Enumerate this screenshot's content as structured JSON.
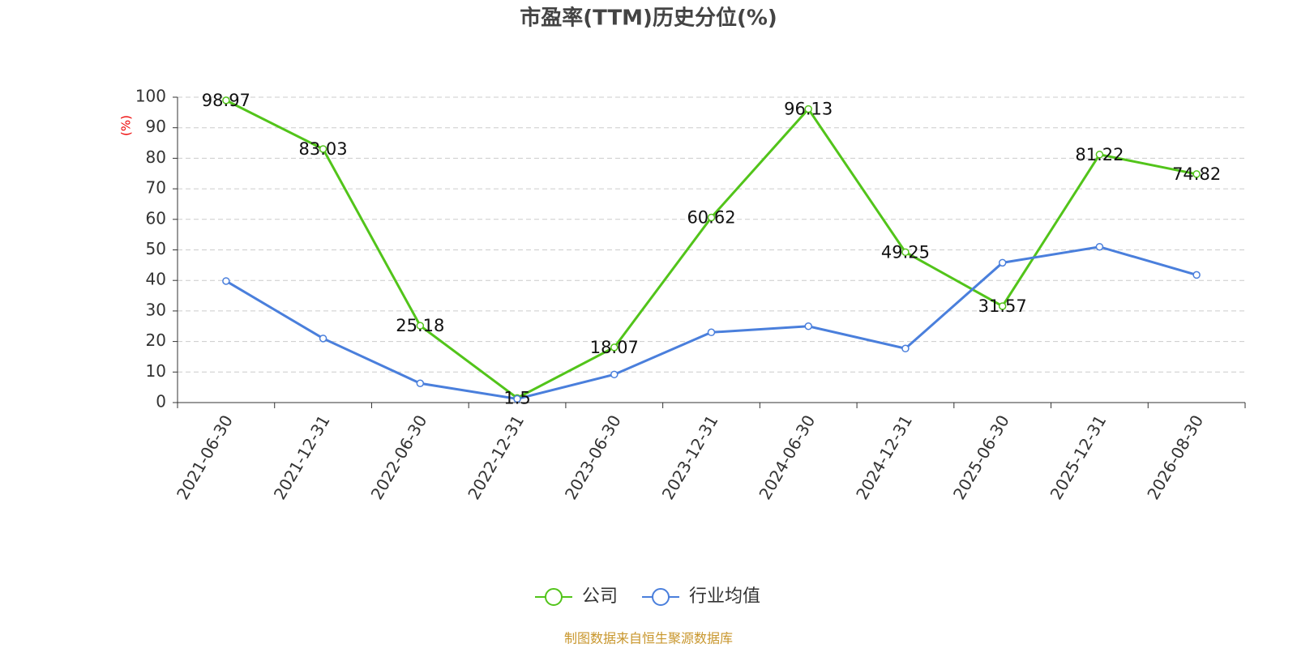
{
  "chart_data": {
    "type": "line",
    "title": "市盈率(TTM)历史分位(%)",
    "y_label": "(%)",
    "categories": [
      "2021-06-30",
      "2021-12-31",
      "2022-06-30",
      "2022-12-31",
      "2023-06-30",
      "2023-12-31",
      "2024-06-30",
      "2024-12-31",
      "2025-06-30",
      "2025-12-31",
      "2026-08-30"
    ],
    "series": [
      {
        "name": "公司",
        "color": "#52c41a",
        "values": [
          98.97,
          83.03,
          25.18,
          1.5,
          18.07,
          60.62,
          96.13,
          49.25,
          31.57,
          81.22,
          74.82
        ],
        "show_labels": true
      },
      {
        "name": "行业均值",
        "color": "#4a7fdc",
        "values": [
          39.8,
          21.0,
          6.3,
          1.2,
          9.2,
          23.0,
          25.0,
          17.7,
          45.8,
          51.0,
          41.8
        ],
        "show_labels": false
      }
    ],
    "ylim": [
      0,
      100
    ],
    "yticks": [
      0,
      10,
      20,
      30,
      40,
      50,
      60,
      70,
      80,
      90,
      100
    ],
    "grid": true,
    "legend": "bottom",
    "source": "制图数据来自恒生聚源数据库"
  }
}
